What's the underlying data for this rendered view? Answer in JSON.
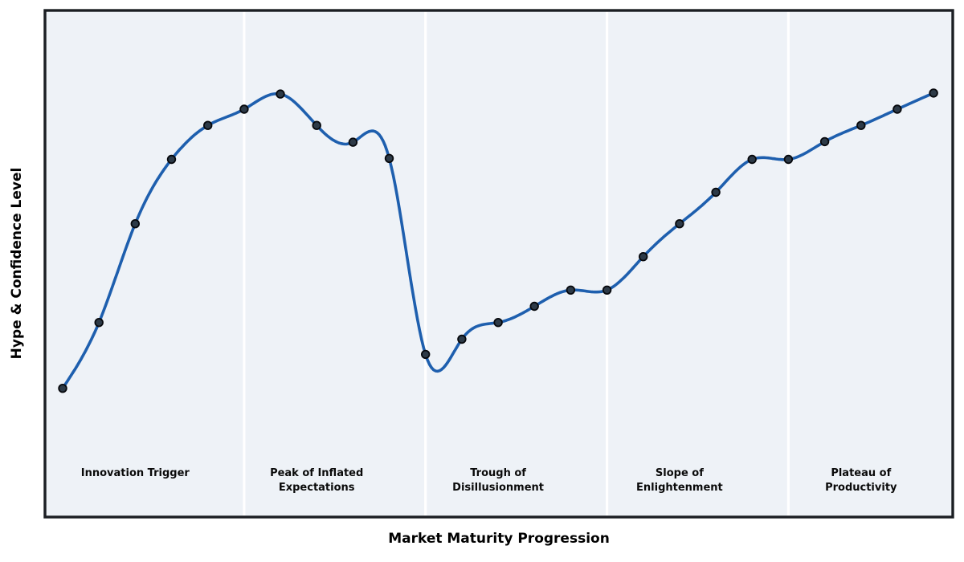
{
  "chart_data": {
    "type": "line",
    "title": "",
    "xlabel": "Market Maturity Progression",
    "ylabel": "Hype & Confidence Level",
    "x": [
      0,
      1,
      2,
      3,
      4,
      5,
      6,
      7,
      8,
      9,
      10,
      11,
      12,
      13,
      14,
      15,
      16,
      17,
      18,
      19,
      20,
      21,
      22,
      23,
      24
    ],
    "values": [
      25.4,
      38.4,
      57.9,
      70.6,
      77.3,
      80.5,
      83.5,
      77.3,
      74.0,
      70.8,
      32.1,
      35.1,
      38.4,
      41.6,
      44.8,
      44.8,
      51.4,
      57.9,
      64.1,
      70.6,
      70.6,
      74.1,
      77.3,
      80.5,
      83.7
    ],
    "xlim": [
      -0.487,
      24.529
    ],
    "ylim": [
      0,
      100
    ],
    "grid": false,
    "legend": null,
    "interpolation": "cubic-spline",
    "ticks_shown": false,
    "separators_x": [
      5,
      10,
      15,
      20
    ],
    "phases": [
      {
        "label": "Innovation Trigger",
        "x_center": 2
      },
      {
        "label": "Peak of Inflated\nExpectations",
        "x_center": 7
      },
      {
        "label": "Trough of\nDisillusionment",
        "x_center": 12
      },
      {
        "label": "Slope of\nEnlightenment",
        "x_center": 17
      },
      {
        "label": "Plateau of\nProductivity",
        "x_center": 22
      }
    ],
    "colors": {
      "line": "#1e5fae",
      "marker_fill": "#2d3a47",
      "marker_edge": "#06080c",
      "plot_bg": "#eef2f7",
      "separator": "#ffffff",
      "spine": "#1b1e23",
      "page_bg": "#ffffff",
      "label_text": "#0a0a0a"
    },
    "style": {
      "line_width": 3.6,
      "marker_radius": 4.8,
      "marker_edge_width": 1.8,
      "separator_width": 3.2,
      "spine_width": 3.4
    }
  }
}
